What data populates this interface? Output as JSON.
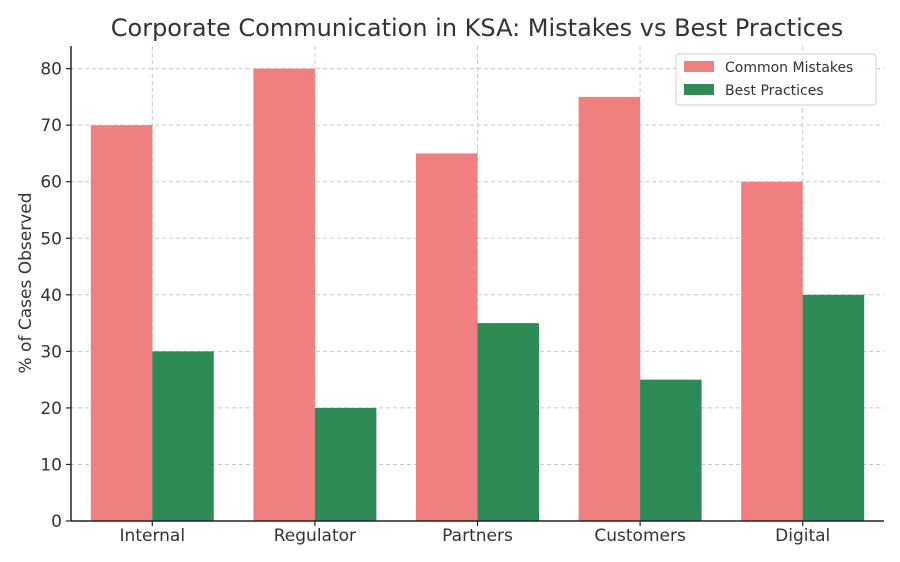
{
  "chart_data": {
    "type": "bar",
    "title": "Corporate Communication in KSA: Mistakes vs Best Practices",
    "xlabel": "",
    "ylabel": "% of Cases Observed",
    "categories": [
      "Internal",
      "Regulator",
      "Partners",
      "Customers",
      "Digital"
    ],
    "series": [
      {
        "name": "Common Mistakes",
        "values": [
          70,
          80,
          65,
          75,
          60
        ],
        "color": "#f08080"
      },
      {
        "name": "Best Practices",
        "values": [
          30,
          20,
          35,
          25,
          40
        ],
        "color": "#2e8b57"
      }
    ],
    "ylim": [
      0,
      84
    ],
    "yticks": [
      0,
      10,
      20,
      30,
      40,
      50,
      60,
      70,
      80
    ],
    "grid": true,
    "legend_position": "top-right"
  }
}
